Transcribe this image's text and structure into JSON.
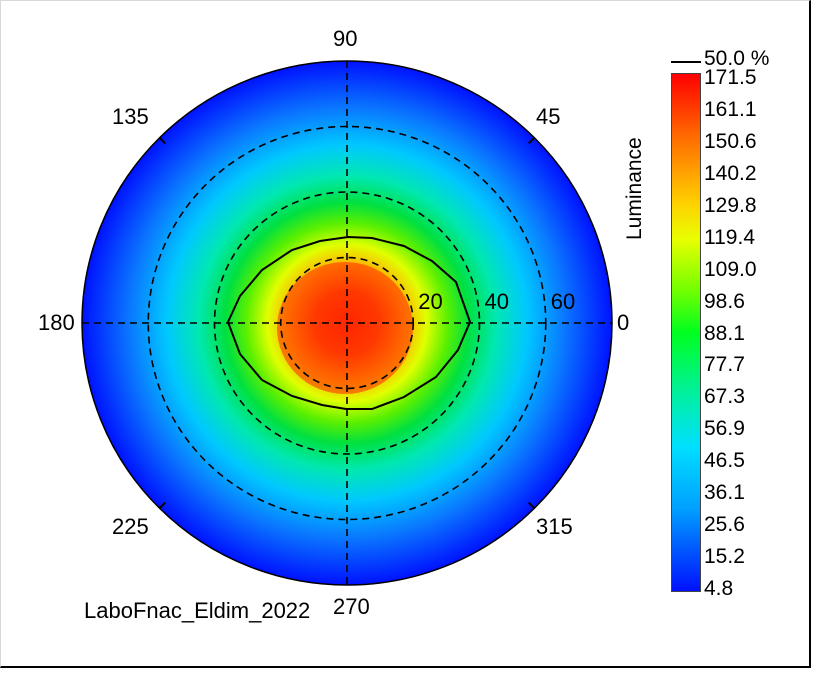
{
  "chart_data": {
    "type": "heatmap",
    "subtype": "polar-conoscope",
    "caption": "LaboFnac_Eldim_2022",
    "colorbar_title": "Luminance",
    "contour_label": "50.0 %",
    "colorbar_ticks": [
      "171.5",
      "161.1",
      "150.6",
      "140.2",
      "129.8",
      "119.4",
      "109.0",
      "98.6",
      "88.1",
      "77.7",
      "67.3",
      "56.9",
      "46.5",
      "36.1",
      "25.6",
      "15.2",
      "4.8"
    ],
    "value_range": [
      4.8,
      171.5
    ],
    "azimuth_labels": [
      {
        "deg": 0,
        "text": "0"
      },
      {
        "deg": 45,
        "text": "45"
      },
      {
        "deg": 90,
        "text": "90"
      },
      {
        "deg": 135,
        "text": "135"
      },
      {
        "deg": 180,
        "text": "180"
      },
      {
        "deg": 225,
        "text": "225"
      },
      {
        "deg": 270,
        "text": "270"
      },
      {
        "deg": 315,
        "text": "315"
      }
    ],
    "radial_rings": [
      20,
      40,
      60
    ],
    "radial_labels": [
      "20",
      "40",
      "60"
    ],
    "max_polar_angle": 80,
    "peak_luminance": 171.5,
    "edge_luminance": 4.8,
    "colors": {
      "dashed_grid": "#000000",
      "contour": "#000000"
    }
  }
}
